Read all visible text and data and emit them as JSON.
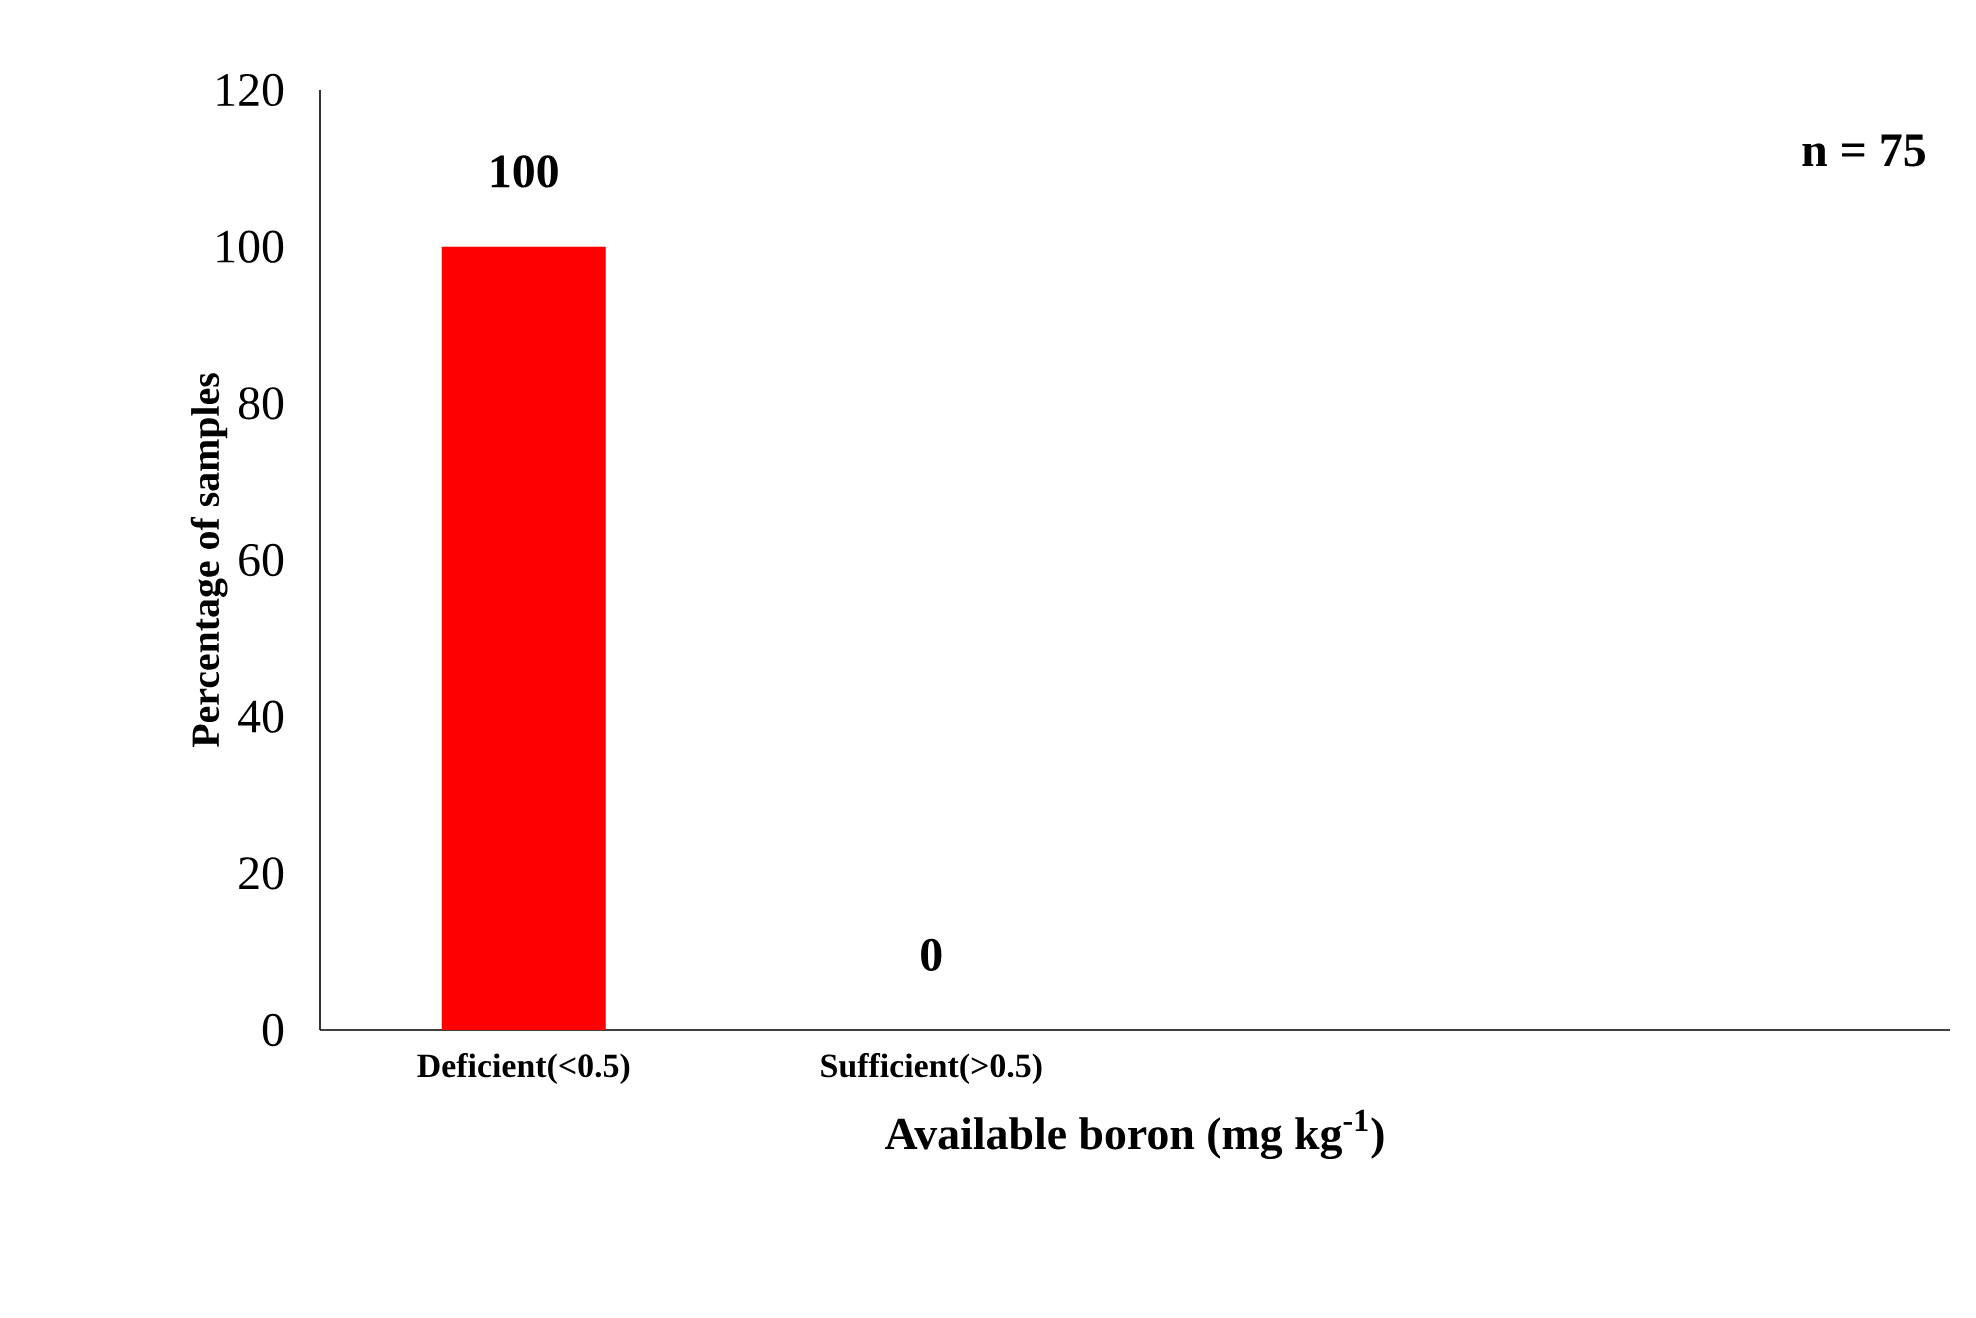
{
  "chart_data": {
    "type": "bar",
    "xlabel": "**Available  boron (mg kg$^{-1}$)**",
    "ylabel": "**Percentage of samples**",
    "categories": [
      "**Deficient(<0.5)**",
      "**Sufficient(>0.5)**",
      null,
      null
    ],
    "values": [
      100,
      0,
      null,
      null
    ],
    "color": "#ff0000",
    "data_labels": true,
    "ylim": [
      0,
      120
    ],
    "yticks": [
      0,
      20,
      40,
      60,
      80,
      100,
      120
    ],
    "annotations": [
      "**n = 75**"
    ]
  }
}
